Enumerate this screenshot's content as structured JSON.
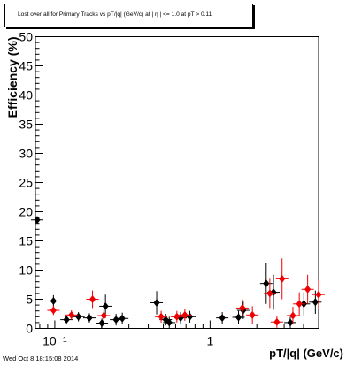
{
  "chart_data": {
    "type": "scatter",
    "title": "Lost over all for Primary Tracks vs pT/|q| (GeV/c) at |  η | <= 1.0 at pT > 0.11",
    "xlabel": "pT/|q| (GeV/c)",
    "ylabel": "Efficiency (%)",
    "xscale": "log",
    "xlim": [
      0.075,
      5.0
    ],
    "ylim": [
      0,
      50
    ],
    "x_major_ticks": [
      {
        "value": 0.1,
        "label": "10⁻¹"
      },
      {
        "value": 1,
        "label": "1"
      }
    ],
    "y_ticks": [
      0,
      5,
      10,
      15,
      20,
      25,
      30,
      35,
      40,
      45,
      50
    ],
    "grid": false,
    "legend": "none",
    "colors": {
      "black_series": "#000000",
      "red_series": "#ee0000"
    },
    "series": [
      {
        "marker": "diamond",
        "color": "#000000",
        "points": [
          {
            "x": 0.077,
            "y": 18.6,
            "err": 0.6
          },
          {
            "x": 0.098,
            "y": 4.7,
            "err": 1.0
          },
          {
            "x": 0.119,
            "y": 1.5,
            "err": 0.6
          },
          {
            "x": 0.142,
            "y": 2.0,
            "err": 0.8
          },
          {
            "x": 0.167,
            "y": 1.8,
            "err": 0.8
          },
          {
            "x": 0.201,
            "y": 0.9,
            "err": 0.8
          },
          {
            "x": 0.212,
            "y": 3.8,
            "err": 2.0
          },
          {
            "x": 0.248,
            "y": 1.5,
            "err": 1.0
          },
          {
            "x": 0.272,
            "y": 1.7,
            "err": 1.0
          },
          {
            "x": 0.453,
            "y": 4.4,
            "err": 2.0
          },
          {
            "x": 0.518,
            "y": 1.5,
            "err": 1.0
          },
          {
            "x": 0.546,
            "y": 1.0,
            "err": 1.0
          },
          {
            "x": 0.646,
            "y": 1.8,
            "err": 1.0
          },
          {
            "x": 0.741,
            "y": 2.0,
            "err": 1.0
          },
          {
            "x": 1.198,
            "y": 1.8,
            "err": 1.0
          },
          {
            "x": 1.525,
            "y": 1.9,
            "err": 1.1
          },
          {
            "x": 1.635,
            "y": 3.1,
            "err": 1.5
          },
          {
            "x": 2.299,
            "y": 7.7,
            "err": 3.5
          },
          {
            "x": 2.561,
            "y": 6.2,
            "err": 3.0
          },
          {
            "x": 3.286,
            "y": 1.0,
            "err": 1.0
          },
          {
            "x": 4.017,
            "y": 4.2,
            "err": 2.0
          },
          {
            "x": 4.766,
            "y": 4.5,
            "err": 2.0
          }
        ]
      },
      {
        "marker": "diamond",
        "color": "#ee0000",
        "points": [
          {
            "x": 0.098,
            "y": 3.1,
            "err": 0.8
          },
          {
            "x": 0.128,
            "y": 2.3,
            "err": 0.8
          },
          {
            "x": 0.175,
            "y": 5.0,
            "err": 1.5
          },
          {
            "x": 0.207,
            "y": 2.2,
            "err": 1.0
          },
          {
            "x": 0.484,
            "y": 2.0,
            "err": 1.0
          },
          {
            "x": 0.611,
            "y": 2.0,
            "err": 1.0
          },
          {
            "x": 0.688,
            "y": 2.3,
            "err": 1.0
          },
          {
            "x": 1.615,
            "y": 3.5,
            "err": 1.5
          },
          {
            "x": 1.873,
            "y": 2.3,
            "err": 1.5
          },
          {
            "x": 2.425,
            "y": 6.0,
            "err": 2.5
          },
          {
            "x": 2.694,
            "y": 1.1,
            "err": 1.0
          },
          {
            "x": 2.909,
            "y": 8.5,
            "err": 3.5
          },
          {
            "x": 3.416,
            "y": 2.2,
            "err": 1.5
          },
          {
            "x": 3.754,
            "y": 4.2,
            "err": 2.0
          },
          {
            "x": 4.251,
            "y": 6.7,
            "err": 2.5
          },
          {
            "x": 4.996,
            "y": 5.8,
            "err": 2.5
          }
        ]
      }
    ]
  },
  "footer": {
    "timestamp": "Wed Oct  8 18:15:08 2014"
  }
}
